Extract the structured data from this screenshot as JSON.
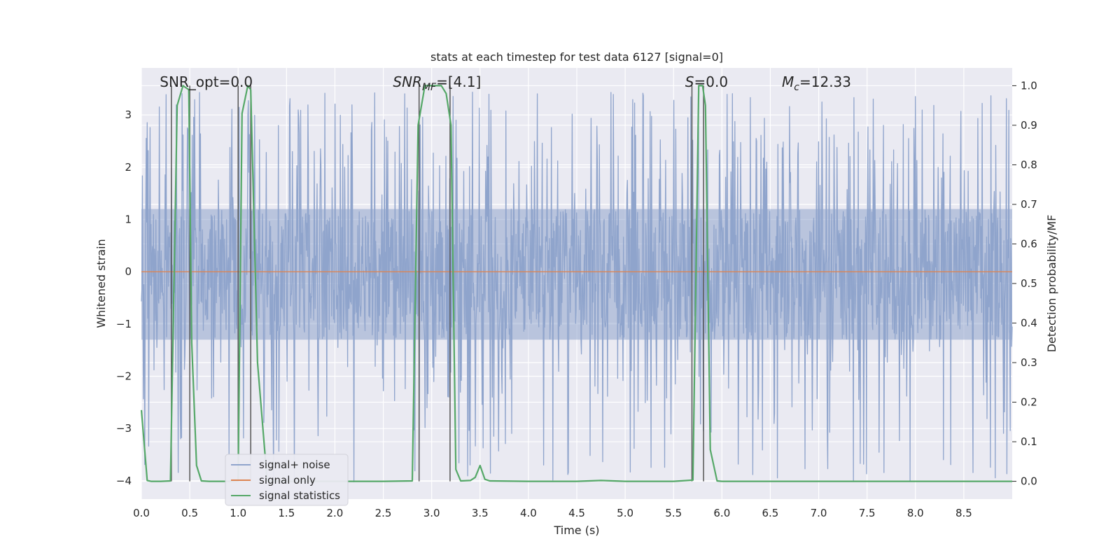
{
  "chart_data": {
    "type": "line",
    "title": "stats at each timestep for test data 6127 [signal=0]",
    "xlabel": "Time (s)",
    "ylabel": "Whitened strain",
    "y2label": "Detection probability/MF",
    "xlim": [
      0.0,
      9.0
    ],
    "ylim": [
      -4.35,
      3.9
    ],
    "y2lim": [
      -0.045,
      1.045
    ],
    "xticks": [
      0.0,
      0.5,
      1.0,
      1.5,
      2.0,
      2.5,
      3.0,
      3.5,
      4.0,
      4.5,
      5.0,
      5.5,
      6.0,
      6.5,
      7.0,
      7.5,
      8.0,
      8.5
    ],
    "xtick_labels": [
      "0.0",
      "0.5",
      "1.0",
      "1.5",
      "2.0",
      "2.5",
      "3.0",
      "3.5",
      "4.0",
      "4.5",
      "5.0",
      "5.5",
      "6.0",
      "6.5",
      "7.0",
      "7.5",
      "8.0",
      "8.5"
    ],
    "yticks": [
      3,
      2,
      1,
      0,
      -1,
      -2,
      -3,
      -4
    ],
    "ytick_labels": [
      "3",
      "2",
      "1",
      "0",
      "−1",
      "−2",
      "−3",
      "−4"
    ],
    "y2ticks": [
      1.0,
      0.9,
      0.8,
      0.7,
      0.6,
      0.5,
      0.4,
      0.3,
      0.2,
      0.1,
      0.0
    ],
    "y2tick_labels": [
      "1.0",
      "0.9",
      "0.8",
      "0.7",
      "0.6",
      "0.5",
      "0.4",
      "0.3",
      "0.2",
      "0.1",
      "0.0"
    ],
    "grid": true,
    "legend_position": "lower-left",
    "legend": [
      {
        "label": "signal+ noise",
        "color": "#8fa4cc"
      },
      {
        "label": "signal only",
        "color": "#dd8452"
      },
      {
        "label": "signal statistics",
        "color": "#55a868"
      }
    ],
    "annotations": {
      "snr_opt": "SNR_opt=0.0",
      "snr_mf_main": "SNR",
      "snr_mf_sub": "MF",
      "snr_mf_value": "=[4.1]",
      "s_main": "S",
      "s_value": "=0.0",
      "mc_main": "M",
      "mc_sub": "c",
      "mc_value": "=12.33"
    },
    "colors": {
      "plot_background": "#eaeaf2",
      "grid": "#ffffff",
      "noise": "#8fa4cc",
      "signal_only": "#dd8452",
      "statistics": "#55a868",
      "vertical_markers": "#555555"
    },
    "series": [
      {
        "name": "signal statistics",
        "axis": "right",
        "x": [
          0.0,
          0.06,
          0.1,
          0.2,
          0.3,
          0.37,
          0.43,
          0.49,
          0.52,
          0.57,
          0.62,
          0.7,
          0.8,
          0.9,
          1.0,
          1.04,
          1.1,
          1.13,
          1.2,
          1.3,
          1.5,
          2.0,
          2.5,
          2.8,
          2.86,
          2.93,
          3.0,
          3.1,
          3.15,
          3.2,
          3.25,
          3.3,
          3.4,
          3.45,
          3.5,
          3.55,
          3.6,
          4.0,
          4.5,
          4.75,
          5.0,
          5.5,
          5.7,
          5.76,
          5.8,
          5.83,
          5.88,
          5.95,
          6.0,
          7.0,
          8.0,
          9.0
        ],
        "y": [
          0.18,
          0.002,
          0.0,
          0.0,
          0.001,
          0.95,
          1.0,
          0.99,
          0.35,
          0.04,
          0.001,
          0.0,
          0.0,
          0.0,
          0.001,
          0.93,
          1.0,
          0.99,
          0.3,
          0.001,
          0.0,
          0.0,
          0.0,
          0.001,
          0.9,
          1.0,
          1.0,
          1.0,
          0.98,
          0.9,
          0.03,
          0.001,
          0.002,
          0.01,
          0.04,
          0.005,
          0.001,
          0.0,
          0.0,
          0.002,
          0.0,
          0.0,
          0.003,
          1.0,
          1.0,
          0.95,
          0.08,
          0.001,
          0.0,
          0.0,
          0.0,
          0.0
        ]
      },
      {
        "name": "signal only",
        "axis": "left",
        "x": [
          0.0,
          9.0
        ],
        "y": [
          0.0,
          0.0
        ]
      },
      {
        "name": "vertical markers",
        "axis": "right",
        "x": [
          0.31,
          0.5,
          1.0,
          1.13,
          2.87,
          3.19,
          5.69,
          5.81
        ]
      },
      {
        "name": "signal+ noise",
        "axis": "left",
        "seed": 6127,
        "samples": 1800,
        "typical_range": [
          -1.3,
          1.2
        ],
        "peak_max": 3.45,
        "trough_min": -4.05
      }
    ]
  }
}
